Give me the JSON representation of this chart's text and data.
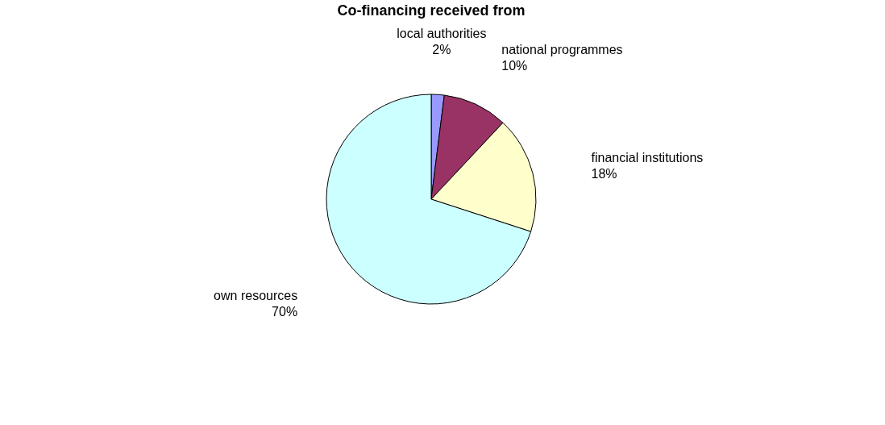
{
  "chart_data": {
    "type": "pie",
    "title": "Co-financing received from",
    "categories": [
      "local authorities",
      "national programmes",
      "financial institutions",
      "own resources"
    ],
    "values": [
      2,
      10,
      18,
      70
    ],
    "value_labels": [
      "2%",
      "10%",
      "18%",
      "70%"
    ],
    "colors": [
      "#9999ff",
      "#993366",
      "#ffffcc",
      "#ccffff"
    ],
    "legend": false
  }
}
